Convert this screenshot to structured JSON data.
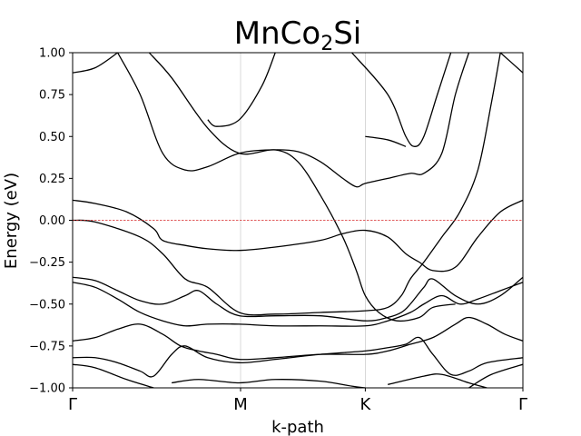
{
  "chart_data": {
    "type": "line",
    "title_base": "MnCo",
    "title_sub": "2",
    "title_tail": "Si",
    "xlabel": "k-path",
    "ylabel": "Energy (eV)",
    "ylim": [
      -1.0,
      1.0
    ],
    "xlim": [
      0,
      1
    ],
    "yticks": [
      "1.00",
      "0.75",
      "0.50",
      "0.25",
      "0.00",
      "−0.25",
      "−0.50",
      "−0.75",
      "−1.00"
    ],
    "ytick_values": [
      1.0,
      0.75,
      0.5,
      0.25,
      0.0,
      -0.25,
      -0.5,
      -0.75,
      -1.0
    ],
    "xtick_labels": [
      "Γ",
      "M",
      "K",
      "Γ"
    ],
    "xtick_values": [
      0,
      0.373,
      0.65,
      1
    ],
    "fermi_level": 0.0,
    "grid": "vertical lines at high-symmetry points",
    "series": [
      {
        "values": [
          [
            0,
            0.88
          ],
          [
            0.05,
            0.91
          ],
          [
            0.1,
            1.0
          ]
        ]
      },
      {
        "values": [
          [
            0.17,
            1.0
          ],
          [
            0.22,
            0.85
          ],
          [
            0.3,
            0.55
          ],
          [
            0.37,
            0.4
          ],
          [
            0.45,
            0.42
          ],
          [
            0.5,
            0.35
          ],
          [
            0.55,
            0.15
          ],
          [
            0.6,
            -0.1
          ],
          [
            0.63,
            -0.3
          ],
          [
            0.65,
            -0.45
          ],
          [
            0.68,
            -0.55
          ],
          [
            0.72,
            -0.6
          ],
          [
            0.77,
            -0.58
          ],
          [
            0.8,
            -0.52
          ],
          [
            0.85,
            -0.5
          ]
        ]
      },
      {
        "values": [
          [
            0.1,
            1.0
          ],
          [
            0.15,
            0.75
          ],
          [
            0.2,
            0.4
          ],
          [
            0.25,
            0.3
          ],
          [
            0.3,
            0.32
          ],
          [
            0.37,
            0.4
          ],
          [
            0.44,
            0.42
          ],
          [
            0.5,
            0.41
          ],
          [
            0.55,
            0.35
          ],
          [
            0.6,
            0.25
          ],
          [
            0.63,
            0.2
          ],
          [
            0.65,
            0.22
          ],
          [
            0.7,
            0.25
          ],
          [
            0.75,
            0.28
          ],
          [
            0.78,
            0.28
          ],
          [
            0.82,
            0.4
          ],
          [
            0.85,
            0.75
          ],
          [
            0.88,
            1.0
          ]
        ]
      },
      {
        "values": [
          [
            0.0,
            0.0
          ],
          [
            0.05,
            -0.01
          ],
          [
            0.15,
            -0.1
          ],
          [
            0.2,
            -0.2
          ],
          [
            0.25,
            -0.35
          ],
          [
            0.3,
            -0.4
          ],
          [
            0.37,
            -0.55
          ],
          [
            0.45,
            -0.56
          ],
          [
            0.55,
            -0.55
          ],
          [
            0.65,
            -0.54
          ],
          [
            0.7,
            -0.52
          ],
          [
            0.73,
            -0.45
          ],
          [
            0.75,
            -0.35
          ],
          [
            0.78,
            -0.25
          ],
          [
            0.82,
            -0.1
          ],
          [
            0.86,
            0.05
          ],
          [
            0.9,
            0.3
          ],
          [
            0.93,
            0.7
          ],
          [
            0.95,
            1.0
          ]
        ]
      },
      {
        "values": [
          [
            0.0,
            0.12
          ],
          [
            0.05,
            0.1
          ],
          [
            0.12,
            0.05
          ],
          [
            0.18,
            -0.05
          ],
          [
            0.2,
            -0.12
          ],
          [
            0.25,
            -0.15
          ],
          [
            0.3,
            -0.17
          ],
          [
            0.37,
            -0.18
          ],
          [
            0.45,
            -0.16
          ],
          [
            0.55,
            -0.12
          ],
          [
            0.6,
            -0.08
          ],
          [
            0.65,
            -0.06
          ],
          [
            0.7,
            -0.1
          ],
          [
            0.74,
            -0.2
          ],
          [
            0.77,
            -0.25
          ],
          [
            0.8,
            -0.3
          ],
          [
            0.85,
            -0.28
          ],
          [
            0.9,
            -0.1
          ],
          [
            0.95,
            0.05
          ],
          [
            1.0,
            0.12
          ]
        ]
      },
      {
        "values": [
          [
            0.0,
            -0.34
          ],
          [
            0.05,
            -0.36
          ],
          [
            0.1,
            -0.42
          ],
          [
            0.15,
            -0.48
          ],
          [
            0.2,
            -0.5
          ],
          [
            0.25,
            -0.45
          ],
          [
            0.28,
            -0.42
          ],
          [
            0.32,
            -0.5
          ],
          [
            0.37,
            -0.57
          ],
          [
            0.45,
            -0.57
          ],
          [
            0.55,
            -0.57
          ],
          [
            0.65,
            -0.6
          ],
          [
            0.7,
            -0.58
          ],
          [
            0.73,
            -0.55
          ],
          [
            0.75,
            -0.5
          ],
          [
            0.78,
            -0.4
          ],
          [
            0.8,
            -0.35
          ],
          [
            0.85,
            -0.45
          ],
          [
            0.9,
            -0.5
          ],
          [
            0.95,
            -0.45
          ],
          [
            1.0,
            -0.34
          ]
        ]
      },
      {
        "values": [
          [
            0.0,
            -0.37
          ],
          [
            0.05,
            -0.4
          ],
          [
            0.1,
            -0.47
          ],
          [
            0.15,
            -0.55
          ],
          [
            0.2,
            -0.6
          ],
          [
            0.25,
            -0.63
          ],
          [
            0.3,
            -0.62
          ],
          [
            0.37,
            -0.62
          ],
          [
            0.45,
            -0.63
          ],
          [
            0.55,
            -0.63
          ],
          [
            0.65,
            -0.63
          ],
          [
            0.7,
            -0.6
          ],
          [
            0.75,
            -0.55
          ],
          [
            0.78,
            -0.5
          ],
          [
            0.82,
            -0.45
          ],
          [
            0.86,
            -0.5
          ],
          [
            0.9,
            -0.47
          ],
          [
            0.95,
            -0.42
          ],
          [
            1.0,
            -0.37
          ]
        ]
      },
      {
        "values": [
          [
            0.0,
            -0.72
          ],
          [
            0.05,
            -0.7
          ],
          [
            0.1,
            -0.65
          ],
          [
            0.15,
            -0.62
          ],
          [
            0.2,
            -0.68
          ],
          [
            0.24,
            -0.75
          ],
          [
            0.28,
            -0.78
          ],
          [
            0.32,
            -0.8
          ],
          [
            0.37,
            -0.83
          ],
          [
            0.45,
            -0.82
          ],
          [
            0.55,
            -0.8
          ],
          [
            0.65,
            -0.8
          ],
          [
            0.7,
            -0.78
          ],
          [
            0.75,
            -0.74
          ],
          [
            0.8,
            -0.7
          ],
          [
            0.85,
            -0.62
          ],
          [
            0.88,
            -0.58
          ],
          [
            0.92,
            -0.62
          ],
          [
            0.96,
            -0.68
          ],
          [
            1.0,
            -0.72
          ]
        ]
      },
      {
        "values": [
          [
            0.0,
            -0.82
          ],
          [
            0.05,
            -0.82
          ],
          [
            0.1,
            -0.85
          ],
          [
            0.15,
            -0.9
          ],
          [
            0.18,
            -0.93
          ],
          [
            0.22,
            -0.8
          ],
          [
            0.25,
            -0.75
          ],
          [
            0.3,
            -0.82
          ],
          [
            0.37,
            -0.85
          ],
          [
            0.45,
            -0.83
          ],
          [
            0.55,
            -0.8
          ],
          [
            0.65,
            -0.78
          ],
          [
            0.7,
            -0.76
          ],
          [
            0.74,
            -0.74
          ],
          [
            0.77,
            -0.7
          ],
          [
            0.8,
            -0.8
          ],
          [
            0.84,
            -0.92
          ],
          [
            0.88,
            -0.9
          ],
          [
            0.92,
            -0.85
          ],
          [
            1.0,
            -0.82
          ]
        ]
      },
      {
        "values": [
          [
            0.0,
            -0.86
          ],
          [
            0.05,
            -0.88
          ],
          [
            0.12,
            -0.95
          ],
          [
            0.18,
            -1.0
          ]
        ]
      },
      {
        "values": [
          [
            0.22,
            -0.97
          ],
          [
            0.28,
            -0.95
          ],
          [
            0.37,
            -0.97
          ],
          [
            0.45,
            -0.95
          ],
          [
            0.55,
            -0.96
          ],
          [
            0.62,
            -0.99
          ],
          [
            0.65,
            -1.0
          ]
        ]
      },
      {
        "values": [
          [
            0.7,
            -0.98
          ],
          [
            0.78,
            -0.93
          ],
          [
            0.82,
            -0.92
          ],
          [
            0.88,
            -0.97
          ],
          [
            0.92,
            -1.0
          ]
        ]
      },
      {
        "values": [
          [
            0.88,
            -1.0
          ],
          [
            0.93,
            -0.92
          ],
          [
            1.0,
            -0.86
          ]
        ]
      },
      {
        "values": [
          [
            0.62,
            1.0
          ],
          [
            0.7,
            0.75
          ],
          [
            0.74,
            0.5
          ],
          [
            0.76,
            0.44
          ],
          [
            0.78,
            0.5
          ],
          [
            0.81,
            0.75
          ],
          [
            0.84,
            1.0
          ]
        ]
      },
      {
        "values": [
          [
            0.45,
            1.0
          ],
          [
            0.42,
            0.8
          ],
          [
            0.37,
            0.6
          ],
          [
            0.32,
            0.56
          ],
          [
            0.3,
            0.6
          ]
        ]
      },
      {
        "values": [
          [
            0.65,
            0.5
          ],
          [
            0.7,
            0.48
          ],
          [
            0.74,
            0.44
          ]
        ]
      },
      {
        "values": [
          [
            0.95,
            1.0
          ],
          [
            1.0,
            0.88
          ]
        ]
      }
    ]
  }
}
